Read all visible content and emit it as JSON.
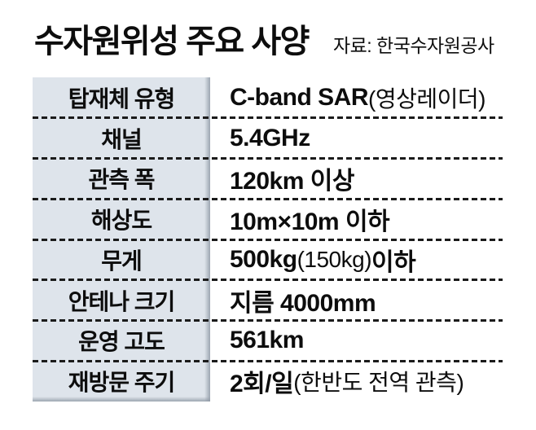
{
  "page": {
    "title": "수자원위성 주요 사양",
    "source": "자료: 한국수자원공사"
  },
  "colors": {
    "background": "#ffffff",
    "text": "#0d0d0d",
    "label_cell_bg": "#dee4eb",
    "label_cell_edge": "#8c96a2",
    "dash_line": "#1b1b1b"
  },
  "table": {
    "rows": [
      {
        "label": "탑재체 유형",
        "segments": [
          {
            "text": "C-band SAR",
            "style": "main"
          },
          {
            "text": "(영상레이더)",
            "style": "note"
          }
        ]
      },
      {
        "label": "채널",
        "segments": [
          {
            "text": "5.4GHz",
            "style": "main"
          }
        ]
      },
      {
        "label": "관측 폭",
        "segments": [
          {
            "text": "120km 이상",
            "style": "main"
          }
        ]
      },
      {
        "label": "해상도",
        "segments": [
          {
            "text": "10m×10m 이하",
            "style": "main"
          }
        ]
      },
      {
        "label": "무게",
        "segments": [
          {
            "text": "500kg",
            "style": "main"
          },
          {
            "text": "(150kg)",
            "style": "note"
          },
          {
            "text": " 이하",
            "style": "main"
          }
        ]
      },
      {
        "label": "안테나 크기",
        "segments": [
          {
            "text": "지름 4000mm",
            "style": "main"
          }
        ]
      },
      {
        "label": "운영 고도",
        "segments": [
          {
            "text": "561km",
            "style": "main"
          }
        ]
      },
      {
        "label": "재방문 주기",
        "segments": [
          {
            "text": "2회/일",
            "style": "main"
          },
          {
            "text": "(한반도 전역 관측)",
            "style": "note"
          }
        ]
      }
    ]
  },
  "chart_data": {
    "type": "table",
    "title": "수자원위성 주요 사양",
    "source": "자료: 한국수자원공사",
    "rows": [
      [
        "탑재체 유형",
        "C-band SAR(영상레이더)"
      ],
      [
        "채널",
        "5.4GHz"
      ],
      [
        "관측 폭",
        "120km 이상"
      ],
      [
        "해상도",
        "10m×10m 이하"
      ],
      [
        "무게",
        "500kg(150kg) 이하"
      ],
      [
        "안테나 크기",
        "지름 4000mm"
      ],
      [
        "운영 고도",
        "561km"
      ],
      [
        "재방문 주기",
        "2회/일(한반도 전역 관측)"
      ]
    ]
  }
}
